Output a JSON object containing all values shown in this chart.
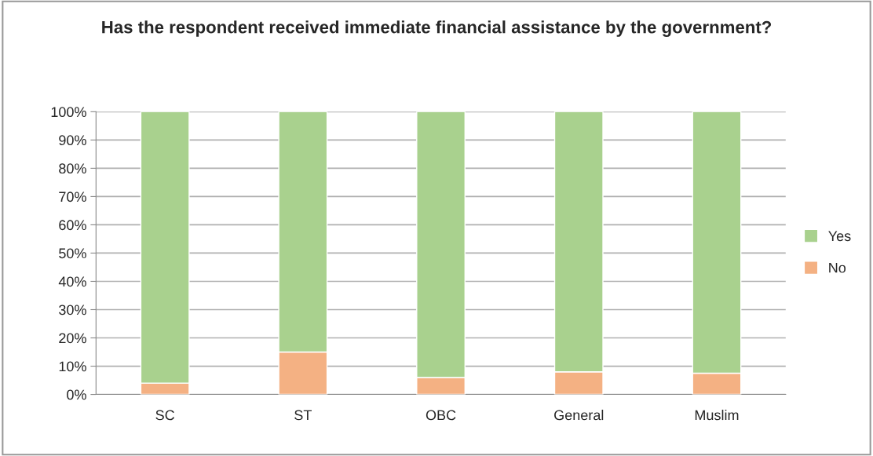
{
  "chart_data": {
    "type": "bar",
    "title": "Has the respondent received immediate financial assistance by the government?",
    "stacked": true,
    "categories": [
      "SC",
      "ST",
      "OBC",
      "General",
      "Muslim"
    ],
    "series": [
      {
        "name": "No",
        "color": "#f4b183",
        "values": [
          4,
          15,
          6,
          8,
          7.5
        ]
      },
      {
        "name": "Yes",
        "color": "#a9d18e",
        "values": [
          96,
          85,
          94,
          92,
          92.5
        ]
      }
    ],
    "ylim": [
      0,
      100
    ],
    "yticks": [
      {
        "value": 0,
        "label": "0%"
      },
      {
        "value": 10,
        "label": "10%"
      },
      {
        "value": 20,
        "label": "20%"
      },
      {
        "value": 30,
        "label": "30%"
      },
      {
        "value": 40,
        "label": "40%"
      },
      {
        "value": 50,
        "label": "50%"
      },
      {
        "value": 60,
        "label": "60%"
      },
      {
        "value": 70,
        "label": "70%"
      },
      {
        "value": 80,
        "label": "80%"
      },
      {
        "value": 90,
        "label": "90%"
      },
      {
        "value": 100,
        "label": "100%"
      }
    ],
    "grid": "y",
    "legend": "right"
  }
}
